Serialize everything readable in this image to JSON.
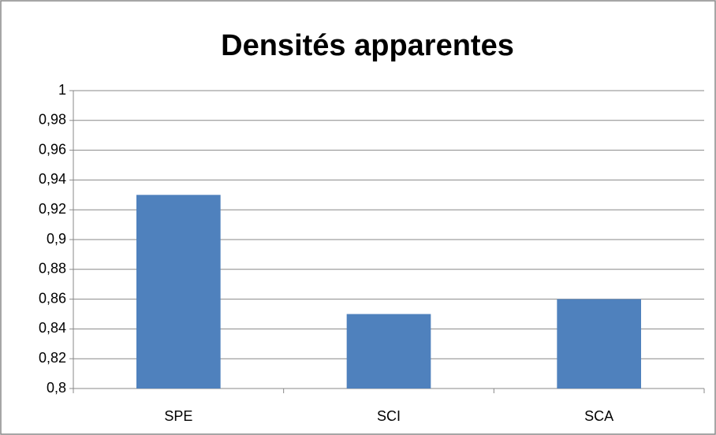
{
  "chart_data": {
    "type": "bar",
    "title": "Densités apparentes",
    "categories": [
      "SPE",
      "SCI",
      "SCA"
    ],
    "values": [
      0.93,
      0.85,
      0.86
    ],
    "color": "#4f81bd",
    "ylim": [
      0.8,
      1
    ],
    "yticks": [
      {
        "value": 0.8,
        "label": "0,8"
      },
      {
        "value": 0.82,
        "label": "0,82"
      },
      {
        "value": 0.84,
        "label": "0,84"
      },
      {
        "value": 0.86,
        "label": "0,86"
      },
      {
        "value": 0.88,
        "label": "0,88"
      },
      {
        "value": 0.9,
        "label": "0,9"
      },
      {
        "value": 0.92,
        "label": "0,92"
      },
      {
        "value": 0.94,
        "label": "0,94"
      },
      {
        "value": 0.96,
        "label": "0,96"
      },
      {
        "value": 0.98,
        "label": "0,98"
      },
      1
    ],
    "grid": true
  }
}
